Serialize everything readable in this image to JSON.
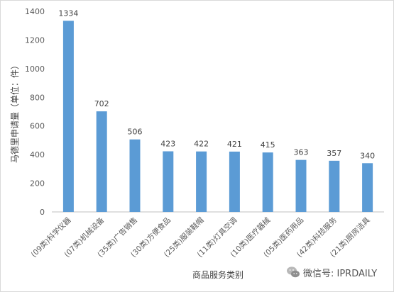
{
  "chart_data": {
    "type": "bar",
    "title": "",
    "xlabel": "商品服务类别",
    "ylabel": "马德里申请量（单位：件）",
    "ylim": [
      0,
      1400
    ],
    "yticks": [
      0,
      200,
      400,
      600,
      800,
      1000,
      1200,
      1400
    ],
    "grid": false,
    "bar_color": "#5b9bd5",
    "categories": [
      "(09类)科学仪器",
      "(07类)机械设备",
      "(35类)广告销售",
      "(30类)方便食品",
      "(25类)服装鞋帽",
      "(11类)灯具空调",
      "(10类)医疗器械",
      "(05类)医药用品",
      "(42类)科技服务",
      "(21类)厨房洁具"
    ],
    "values": [
      1334,
      702,
      506,
      423,
      422,
      421,
      415,
      363,
      357,
      340
    ]
  },
  "watermark": {
    "icon": "wechat-icon",
    "text": "微信号: IPRDAILY"
  }
}
